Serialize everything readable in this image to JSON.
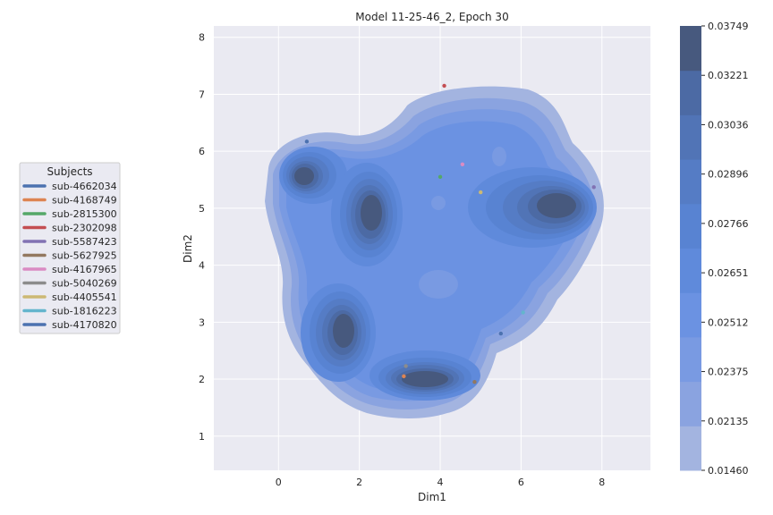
{
  "chart_data": {
    "type": "kde-contour",
    "title": "Model 11-25-46_2, Epoch 30",
    "xlabel": "Dim1",
    "ylabel": "Dim2",
    "xlim": [
      -1.6,
      9.2
    ],
    "ylim": [
      0.4,
      8.2
    ],
    "xticks": [
      0,
      2,
      4,
      6,
      8
    ],
    "yticks": [
      1,
      2,
      3,
      4,
      5,
      6,
      7,
      8
    ],
    "grid": true,
    "legend": {
      "title": "Subjects",
      "placement": "left",
      "entries": [
        {
          "name": "sub-4662034",
          "color": "#4c72b0"
        },
        {
          "name": "sub-4168749",
          "color": "#dd8452"
        },
        {
          "name": "sub-2815300",
          "color": "#55a868"
        },
        {
          "name": "sub-2302098",
          "color": "#c44e52"
        },
        {
          "name": "sub-5587423",
          "color": "#8172b3"
        },
        {
          "name": "sub-5627925",
          "color": "#937860"
        },
        {
          "name": "sub-4167965",
          "color": "#da8bc3"
        },
        {
          "name": "sub-5040269",
          "color": "#8c8c8c"
        },
        {
          "name": "sub-4405541",
          "color": "#ccb974"
        },
        {
          "name": "sub-1816223",
          "color": "#64b5cd"
        },
        {
          "name": "sub-4170820",
          "color": "#4c72b0"
        }
      ]
    },
    "points": [
      {
        "x": 0.7,
        "y": 6.17,
        "color": "#4c72b0"
      },
      {
        "x": 3.1,
        "y": 2.05,
        "color": "#dd8452"
      },
      {
        "x": 4.0,
        "y": 5.55,
        "color": "#55a868"
      },
      {
        "x": 4.1,
        "y": 7.15,
        "color": "#c44e52"
      },
      {
        "x": 7.8,
        "y": 5.37,
        "color": "#8172b3"
      },
      {
        "x": 4.85,
        "y": 1.95,
        "color": "#937860"
      },
      {
        "x": 4.55,
        "y": 5.77,
        "color": "#da8bc3"
      },
      {
        "x": 3.15,
        "y": 2.23,
        "color": "#8c8c8c"
      },
      {
        "x": 5.0,
        "y": 5.28,
        "color": "#ccb974"
      },
      {
        "x": 6.05,
        "y": 3.17,
        "color": "#64b5cd"
      },
      {
        "x": 5.5,
        "y": 2.8,
        "color": "#4c72b0"
      }
    ],
    "colorbar": {
      "levels": [
        0.0146,
        0.02135,
        0.02375,
        0.02512,
        0.02651,
        0.02766,
        0.02896,
        0.03036,
        0.03221,
        0.03749
      ],
      "labels": [
        "0.01460",
        "0.02135",
        "0.02375",
        "0.02512",
        "0.02651",
        "0.02766",
        "0.02896",
        "0.03036",
        "0.03221",
        "0.03749"
      ],
      "colors": [
        "#a3b4e0",
        "#8aa3e0",
        "#799ae2",
        "#6b92e2",
        "#5f8adb",
        "#5883d2",
        "#557cc5",
        "#5174b6",
        "#4c6aa4",
        "#47597e"
      ]
    }
  }
}
